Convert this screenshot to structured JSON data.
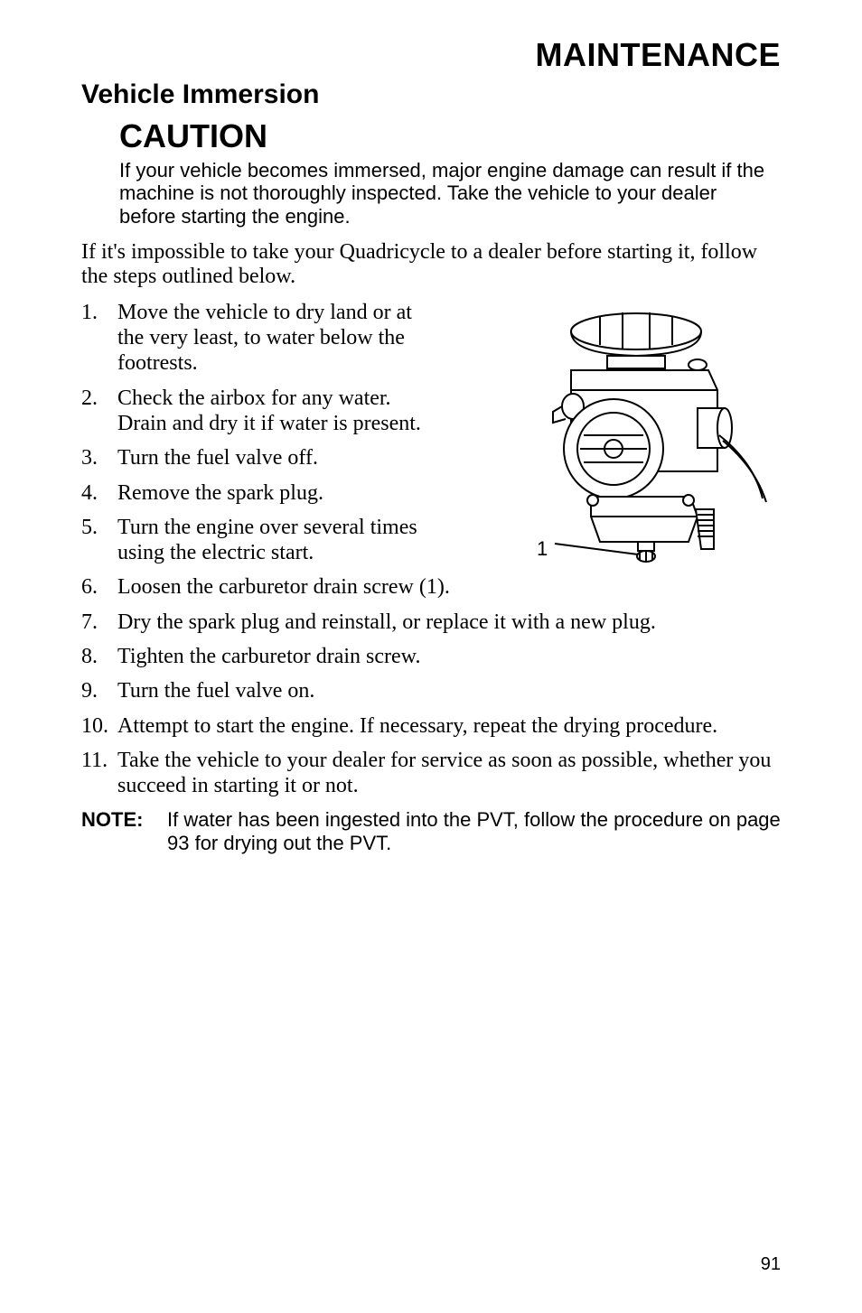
{
  "header": "MAINTENANCE",
  "section_title": "Vehicle Immersion",
  "caution": {
    "word": "CAUTION",
    "text": "If your vehicle becomes immersed, major engine damage can result if the machine is not thoroughly inspected.  Take the vehicle to your dealer before starting the engine."
  },
  "intro": "If it's impossible to take your Quadricycle to a dealer before starting it, follow the steps outlined below.",
  "steps": [
    {
      "n": "1.",
      "t": "Move the vehicle to dry land or at the very least, to water below the footrests.",
      "narrow": true
    },
    {
      "n": "2.",
      "t": "Check the airbox for any water.  Drain and dry it if water is present.",
      "narrow": true
    },
    {
      "n": "3.",
      "t": "Turn the fuel valve off.",
      "narrow": true
    },
    {
      "n": "4.",
      "t": "Remove the spark plug.",
      "narrow": true
    },
    {
      "n": "5.",
      "t": "Turn the engine over several times using the electric start.",
      "narrow": true
    },
    {
      "n": "6.",
      "t": "Loosen the carburetor drain screw (1).",
      "narrow": false
    },
    {
      "n": "7.",
      "t": "Dry the spark plug and reinstall, or replace it with a new plug.",
      "narrow": false
    },
    {
      "n": "8.",
      "t": "Tighten the carburetor drain screw.",
      "narrow": false
    },
    {
      "n": "9.",
      "t": "Turn the fuel valve on.",
      "narrow": false
    },
    {
      "n": "10.",
      "t": "Attempt to start the engine.  If necessary, repeat the drying procedure.",
      "narrow": false
    },
    {
      "n": "11.",
      "t": "Take the vehicle to your dealer for service as soon as possible, whether you succeed in starting it or not.",
      "narrow": false
    }
  ],
  "note": {
    "label": "NOTE:",
    "text": "If water has been ingested into the PVT, follow the procedure on page 93 for drying out the PVT."
  },
  "figure": {
    "callout": "1",
    "stroke": "#000000",
    "fill": "#ffffff"
  },
  "page_number": "91",
  "colors": {
    "text": "#000000",
    "background": "#ffffff"
  },
  "fonts": {
    "sans": "Arial, Helvetica, sans-serif",
    "serif": "\"Times New Roman\", Times, serif"
  }
}
